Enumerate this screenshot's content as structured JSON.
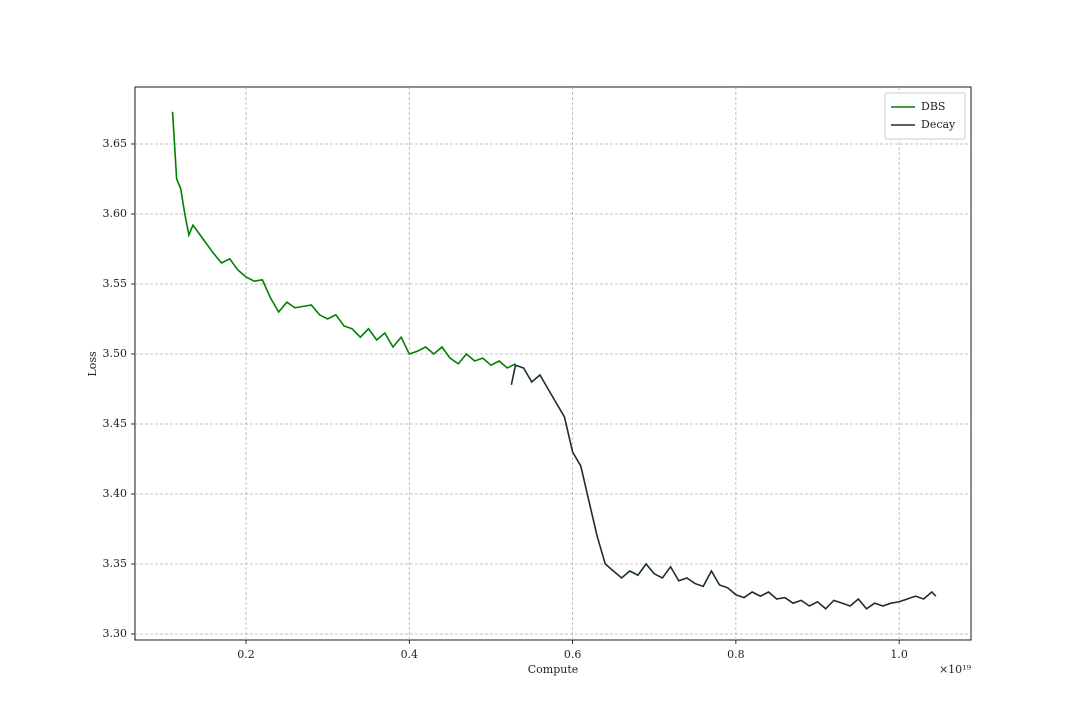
{
  "chart_data": {
    "type": "line",
    "x_label": "Compute",
    "y_label": "Loss",
    "x_offset_label": "×10¹⁹",
    "xlim": [
      0.064,
      1.088
    ],
    "ylim": [
      3.2957,
      3.6907
    ],
    "xticks": [
      0.2,
      0.4,
      0.6,
      0.8,
      {
        "value": 1,
        "label": "1.0"
      }
    ],
    "yticks": [
      {
        "value": 3.3,
        "label": "3.30"
      },
      3.35,
      {
        "value": 3.4,
        "label": "3.40"
      },
      3.45,
      {
        "value": 3.5,
        "label": "3.50"
      },
      3.55,
      {
        "value": 3.6,
        "label": "3.60"
      },
      3.65
    ],
    "grid": true,
    "legend": "upper right",
    "series": [
      {
        "name": "DBS",
        "color": "#008000",
        "x": [
          0.11,
          0.115,
          0.12,
          0.125,
          0.13,
          0.135,
          0.14,
          0.15,
          0.16,
          0.17,
          0.18,
          0.19,
          0.2,
          0.21,
          0.22,
          0.23,
          0.24,
          0.25,
          0.26,
          0.27,
          0.28,
          0.29,
          0.3,
          0.31,
          0.32,
          0.33,
          0.34,
          0.35,
          0.36,
          0.37,
          0.38,
          0.39,
          0.4,
          0.41,
          0.42,
          0.43,
          0.44,
          0.45,
          0.46,
          0.47,
          0.48,
          0.49,
          0.5,
          0.51,
          0.52,
          0.53
        ],
        "values": [
          3.673,
          3.625,
          3.618,
          3.6,
          3.585,
          3.592,
          3.588,
          3.58,
          3.572,
          3.565,
          3.568,
          3.56,
          3.555,
          3.552,
          3.553,
          3.54,
          3.53,
          3.537,
          3.533,
          3.534,
          3.535,
          3.528,
          3.525,
          3.528,
          3.52,
          3.518,
          3.512,
          3.518,
          3.51,
          3.515,
          3.505,
          3.512,
          3.5,
          3.502,
          3.505,
          3.5,
          3.505,
          3.497,
          3.493,
          3.5,
          3.495,
          3.497,
          3.492,
          3.495,
          3.49,
          3.493
        ]
      },
      {
        "name": "Decay",
        "color": "#1c2f2b",
        "x": [
          0.525,
          0.53,
          0.54,
          0.55,
          0.56,
          0.57,
          0.58,
          0.59,
          0.6,
          0.61,
          0.62,
          0.63,
          0.64,
          0.65,
          0.66,
          0.67,
          0.68,
          0.69,
          0.7,
          0.71,
          0.72,
          0.73,
          0.74,
          0.75,
          0.76,
          0.77,
          0.78,
          0.79,
          0.8,
          0.81,
          0.82,
          0.83,
          0.84,
          0.85,
          0.86,
          0.87,
          0.88,
          0.89,
          0.9,
          0.91,
          0.92,
          0.93,
          0.94,
          0.95,
          0.96,
          0.97,
          0.98,
          0.99,
          1.0,
          1.01,
          1.02,
          1.03,
          1.04,
          1.045
        ],
        "values": [
          3.478,
          3.492,
          3.49,
          3.48,
          3.485,
          3.475,
          3.465,
          3.455,
          3.43,
          3.42,
          3.395,
          3.37,
          3.35,
          3.345,
          3.34,
          3.345,
          3.342,
          3.35,
          3.343,
          3.34,
          3.348,
          3.338,
          3.34,
          3.336,
          3.334,
          3.345,
          3.335,
          3.333,
          3.328,
          3.326,
          3.33,
          3.327,
          3.33,
          3.325,
          3.326,
          3.322,
          3.324,
          3.32,
          3.323,
          3.318,
          3.324,
          3.322,
          3.32,
          3.325,
          3.318,
          3.322,
          3.32,
          3.322,
          3.323,
          3.325,
          3.327,
          3.325,
          3.33,
          3.327
        ]
      }
    ]
  }
}
